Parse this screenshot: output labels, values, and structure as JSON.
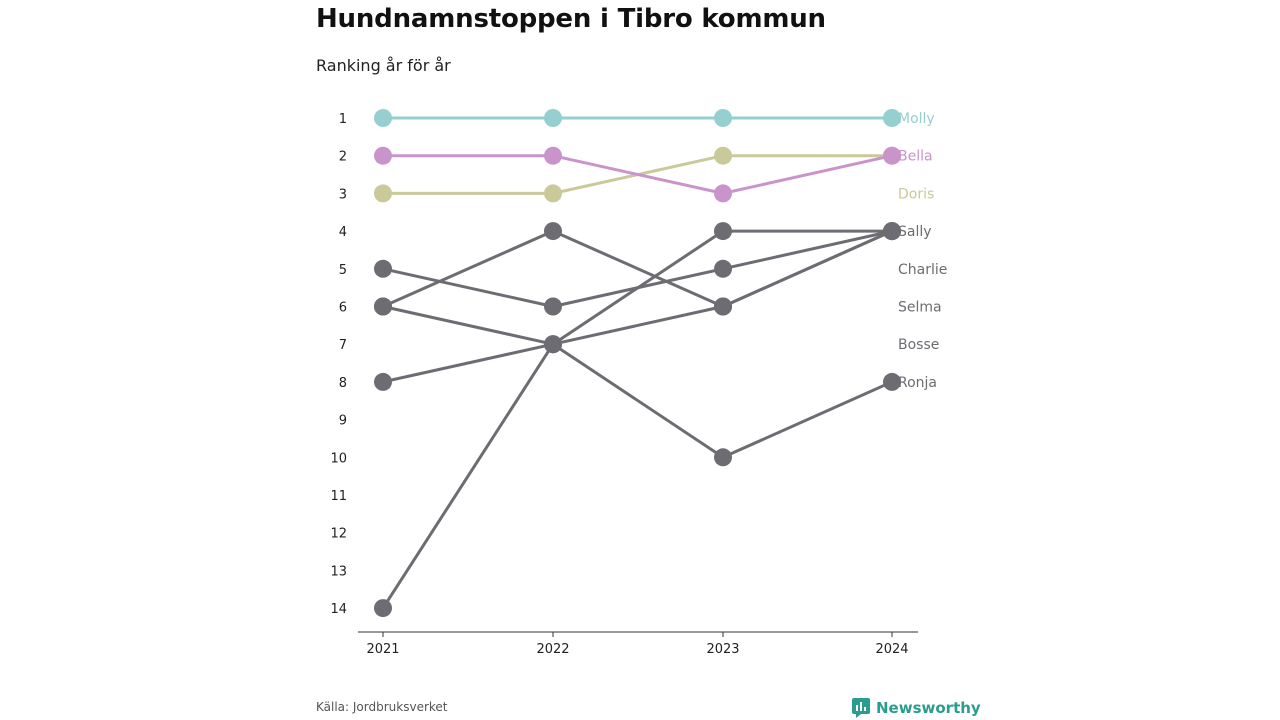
{
  "header": {
    "title": "Hundnamnstoppen i Tibro kommun",
    "subtitle": "Ranking år för år"
  },
  "footer": {
    "source": "Källa: Jordbruksverket",
    "brand": "Newsworthy"
  },
  "chart_data": {
    "type": "line",
    "subtype": "bump",
    "x": [
      "2021",
      "2022",
      "2023",
      "2024"
    ],
    "ylim": [
      1,
      14
    ],
    "y_reversed": true,
    "y_ticks": [
      1,
      2,
      3,
      4,
      5,
      6,
      7,
      8,
      9,
      10,
      11,
      12,
      13,
      14
    ],
    "series": [
      {
        "name": "Ronja",
        "values": [
          6,
          7,
          10,
          8
        ],
        "color": "#6d6c72"
      },
      {
        "name": "Bosse",
        "values": [
          14,
          7,
          4,
          4
        ],
        "color": "#6d6c72"
      },
      {
        "name": "Selma",
        "values": [
          5,
          6,
          5,
          4
        ],
        "color": "#6d6c72"
      },
      {
        "name": "Charlie",
        "values": [
          8,
          7,
          6,
          4
        ],
        "color": "#6d6c72"
      },
      {
        "name": "Sally",
        "values": [
          6,
          4,
          6,
          4
        ],
        "color": "#6d6c72"
      },
      {
        "name": "Doris",
        "values": [
          3,
          3,
          2,
          2
        ],
        "color": "#c9c99a"
      },
      {
        "name": "Bella",
        "values": [
          2,
          2,
          3,
          2
        ],
        "color": "#c994cc"
      },
      {
        "name": "Molly",
        "values": [
          1,
          1,
          1,
          1
        ],
        "color": "#96cfcf"
      }
    ],
    "labels": [
      {
        "name": "Molly",
        "rank": 1,
        "color": "#96cfcf"
      },
      {
        "name": "Bella",
        "rank": 2,
        "color": "#c994cc"
      },
      {
        "name": "Doris",
        "rank": 3,
        "color": "#c9c99a"
      },
      {
        "name": "Sally",
        "rank": 4,
        "color": "#6d6c72"
      },
      {
        "name": "Charlie",
        "rank": 5,
        "color": "#6d6c72"
      },
      {
        "name": "Selma",
        "rank": 6,
        "color": "#6d6c72"
      },
      {
        "name": "Bosse",
        "rank": 7,
        "color": "#6d6c72"
      },
      {
        "name": "Ronja",
        "rank": 8,
        "color": "#6d6c72"
      }
    ],
    "grid": false
  }
}
